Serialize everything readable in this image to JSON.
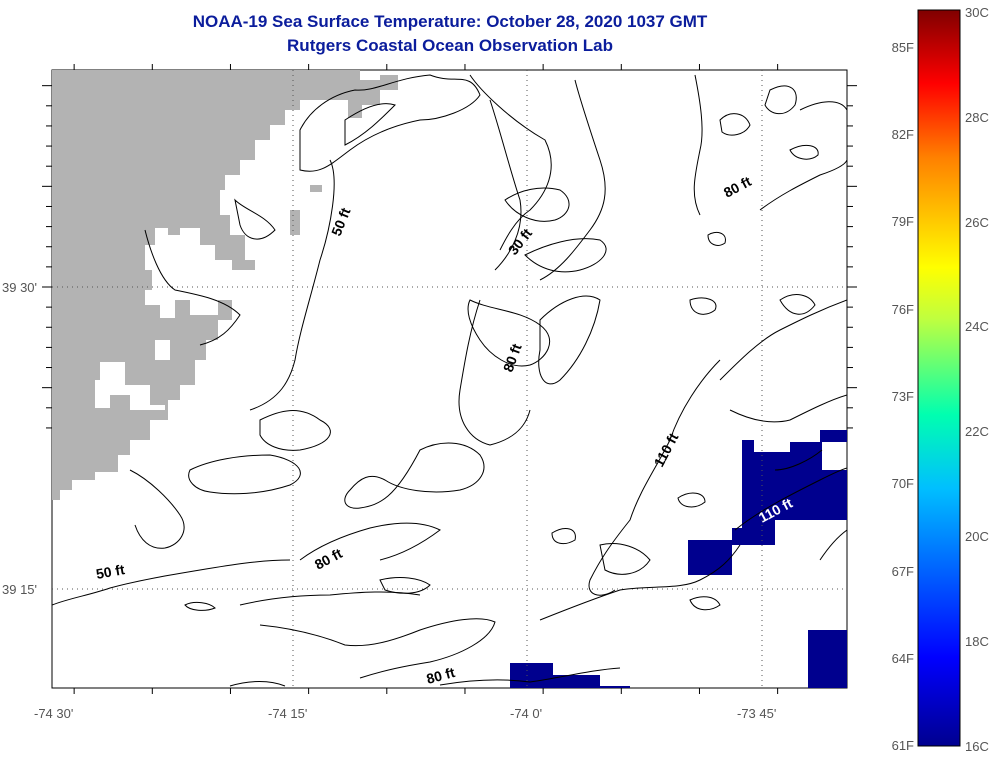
{
  "title": "NOAA-19 Sea Surface Temperature:  October 28, 2020 1037 GMT",
  "subtitle": "Rutgers Coastal Ocean Observation Lab",
  "map": {
    "lat_labels": [
      "39 30'",
      "39 15'"
    ],
    "lon_labels": [
      "-74 30'",
      "-74 15'",
      "-74 0'",
      "-73 45'"
    ],
    "contour_labels": [
      "50 ft",
      "30 ft",
      "80 ft",
      "80 ft",
      "110 ft",
      "110 ft",
      "80 ft",
      "50 ft",
      "80 ft"
    ],
    "land_color": "#b3b3b3",
    "cold_color": "#00008e"
  },
  "colorbar": {
    "f_labels": [
      "85F",
      "82F",
      "79F",
      "76F",
      "73F",
      "70F",
      "67F",
      "64F",
      "61F"
    ],
    "c_labels": [
      "30C",
      "28C",
      "26C",
      "24C",
      "22C",
      "20C",
      "18C",
      "16C"
    ],
    "colors": [
      "#00008f",
      "#0000ff",
      "#00bfff",
      "#00ffb0",
      "#bfff3f",
      "#ffff00",
      "#ff8000",
      "#ff0000",
      "#800000"
    ]
  }
}
